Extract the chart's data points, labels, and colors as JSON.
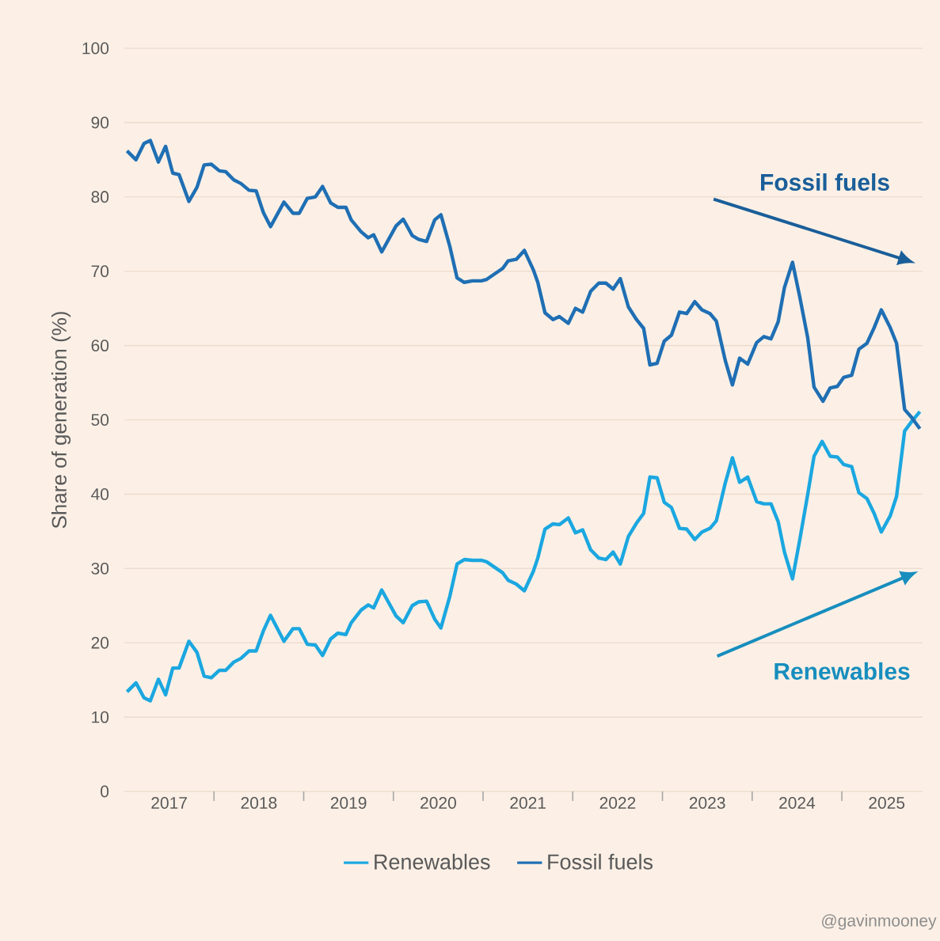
{
  "chart_data": {
    "type": "line",
    "ylabel": "Share of generation (%)",
    "xlim": [
      2017,
      2025.9
    ],
    "xticks": [
      {
        "value": 2017.5,
        "label": "2017"
      },
      {
        "value": 2018,
        "label": null
      },
      {
        "value": 2018.5,
        "label": "2018"
      },
      {
        "value": 2019,
        "label": null
      },
      {
        "value": 2019.5,
        "label": "2019"
      },
      {
        "value": 2020,
        "label": null
      },
      {
        "value": 2020.5,
        "label": "2020"
      },
      {
        "value": 2021,
        "label": null
      },
      {
        "value": 2021.5,
        "label": "2021"
      },
      {
        "value": 2022,
        "label": null
      },
      {
        "value": 2022.5,
        "label": "2022"
      },
      {
        "value": 2023,
        "label": null
      },
      {
        "value": 2023.5,
        "label": "2023"
      },
      {
        "value": 2024,
        "label": null
      },
      {
        "value": 2024.5,
        "label": "2024"
      },
      {
        "value": 2025,
        "label": null
      },
      {
        "value": 2025.5,
        "label": "2025"
      }
    ],
    "ylim": [
      0,
      100
    ],
    "yticks": [
      0,
      10,
      20,
      30,
      40,
      50,
      60,
      70,
      80,
      90,
      100
    ],
    "grid": "y",
    "legend": "bottom",
    "line_style": "solid",
    "series": [
      {
        "name": "Renewables",
        "color": "#1ba7e0",
        "x": [
          2017.03,
          2017.13,
          2017.22,
          2017.29,
          2017.38,
          2017.46,
          2017.54,
          2017.61,
          2017.72,
          2017.81,
          2017.89,
          2017.97,
          2018.06,
          2018.13,
          2018.22,
          2018.3,
          2018.39,
          2018.47,
          2018.55,
          2018.63,
          2018.78,
          2018.88,
          2018.95,
          2019.04,
          2019.13,
          2019.21,
          2019.3,
          2019.38,
          2019.47,
          2019.53,
          2019.64,
          2019.72,
          2019.78,
          2019.87,
          2020.03,
          2020.11,
          2020.21,
          2020.28,
          2020.37,
          2020.46,
          2020.53,
          2020.63,
          2020.71,
          2020.79,
          2020.88,
          2020.98,
          2021.04,
          2021.22,
          2021.28,
          2021.37,
          2021.46,
          2021.56,
          2021.61,
          2021.69,
          2021.78,
          2021.85,
          2021.95,
          2022.03,
          2022.11,
          2022.2,
          2022.29,
          2022.37,
          2022.45,
          2022.53,
          2022.62,
          2022.71,
          2022.79,
          2022.86,
          2022.94,
          2023.02,
          2023.1,
          2023.19,
          2023.27,
          2023.36,
          2023.44,
          2023.53,
          2023.6,
          2023.7,
          2023.78,
          2023.86,
          2023.95,
          2024.05,
          2024.13,
          2024.21,
          2024.29,
          2024.36,
          2024.45,
          2024.53,
          2024.62,
          2024.69,
          2024.78,
          2024.87,
          2024.95,
          2025.02,
          2025.11,
          2025.19,
          2025.28,
          2025.36,
          2025.44,
          2025.54,
          2025.61,
          2025.7,
          2025.78,
          2025.87
        ],
        "values": [
          13.4,
          14.6,
          12.6,
          12.2,
          15.1,
          13.0,
          16.6,
          16.6,
          20.2,
          18.7,
          15.5,
          15.3,
          16.3,
          16.3,
          17.4,
          17.9,
          18.9,
          18.9,
          21.6,
          23.7,
          20.2,
          21.9,
          21.9,
          19.8,
          19.7,
          18.3,
          20.5,
          21.3,
          21.1,
          22.7,
          24.4,
          25.1,
          24.7,
          27.1,
          23.6,
          22.7,
          25.0,
          25.5,
          25.6,
          23.2,
          22.0,
          26.3,
          30.6,
          31.2,
          31.1,
          31.1,
          30.9,
          29.4,
          28.4,
          27.9,
          27.0,
          29.6,
          31.4,
          35.3,
          36.0,
          35.9,
          36.8,
          34.8,
          35.2,
          32.5,
          31.4,
          31.2,
          32.2,
          30.6,
          34.3,
          36.1,
          37.4,
          42.3,
          42.2,
          38.9,
          38.2,
          35.4,
          35.3,
          33.9,
          34.9,
          35.4,
          36.4,
          41.5,
          44.9,
          41.6,
          42.3,
          39.0,
          38.7,
          38.7,
          36.3,
          32.2,
          28.6,
          33.8,
          40.0,
          45.1,
          47.1,
          45.1,
          45.0,
          44.0,
          43.7,
          40.2,
          39.4,
          37.4,
          34.9,
          37.1,
          39.7,
          48.5,
          49.8,
          51.1
        ]
      },
      {
        "name": "Fossil fuels",
        "color": "#1f6fb4",
        "x": [
          2017.03,
          2017.13,
          2017.22,
          2017.29,
          2017.38,
          2017.46,
          2017.54,
          2017.61,
          2017.72,
          2017.81,
          2017.89,
          2017.97,
          2018.06,
          2018.13,
          2018.22,
          2018.3,
          2018.39,
          2018.47,
          2018.55,
          2018.63,
          2018.78,
          2018.88,
          2018.95,
          2019.04,
          2019.13,
          2019.21,
          2019.3,
          2019.38,
          2019.47,
          2019.53,
          2019.64,
          2019.72,
          2019.78,
          2019.87,
          2020.03,
          2020.11,
          2020.21,
          2020.28,
          2020.37,
          2020.46,
          2020.53,
          2020.63,
          2020.71,
          2020.79,
          2020.88,
          2020.98,
          2021.04,
          2021.22,
          2021.28,
          2021.37,
          2021.46,
          2021.56,
          2021.61,
          2021.69,
          2021.78,
          2021.85,
          2021.95,
          2022.03,
          2022.11,
          2022.2,
          2022.29,
          2022.37,
          2022.45,
          2022.53,
          2022.62,
          2022.71,
          2022.79,
          2022.86,
          2022.94,
          2023.02,
          2023.1,
          2023.19,
          2023.27,
          2023.36,
          2023.44,
          2023.53,
          2023.6,
          2023.7,
          2023.78,
          2023.86,
          2023.95,
          2024.05,
          2024.13,
          2024.21,
          2024.29,
          2024.36,
          2024.45,
          2024.53,
          2024.62,
          2024.69,
          2024.79,
          2024.87,
          2024.95,
          2025.02,
          2025.11,
          2025.19,
          2025.28,
          2025.36,
          2025.44,
          2025.54,
          2025.61,
          2025.7,
          2025.78,
          2025.87
        ],
        "values": [
          86.2,
          85.0,
          87.2,
          87.6,
          84.7,
          86.8,
          83.2,
          83.0,
          79.4,
          81.3,
          84.3,
          84.4,
          83.5,
          83.4,
          82.3,
          81.8,
          80.9,
          80.8,
          77.9,
          76.0,
          79.3,
          77.8,
          77.8,
          79.8,
          80.0,
          81.4,
          79.2,
          78.6,
          78.6,
          76.9,
          75.3,
          74.5,
          74.9,
          72.6,
          76.1,
          77.0,
          74.8,
          74.3,
          74.0,
          76.9,
          77.6,
          73.3,
          69.1,
          68.5,
          68.7,
          68.7,
          68.9,
          70.4,
          71.4,
          71.6,
          72.8,
          70.2,
          68.5,
          64.4,
          63.5,
          63.9,
          63.0,
          65.0,
          64.5,
          67.3,
          68.4,
          68.4,
          67.6,
          69.0,
          65.2,
          63.5,
          62.3,
          57.4,
          57.6,
          60.6,
          61.4,
          64.5,
          64.3,
          65.9,
          64.8,
          64.3,
          63.3,
          58.0,
          54.7,
          58.3,
          57.5,
          60.4,
          61.2,
          60.9,
          63.2,
          67.8,
          71.2,
          66.6,
          61.0,
          54.4,
          52.5,
          54.3,
          54.5,
          55.7,
          56.0,
          59.5,
          60.3,
          62.4,
          64.8,
          62.4,
          60.3,
          51.4,
          50.3,
          48.8
        ]
      }
    ],
    "annotations": [
      "Fossil fuels",
      "Renewables",
      "@gavinmooney"
    ]
  }
}
